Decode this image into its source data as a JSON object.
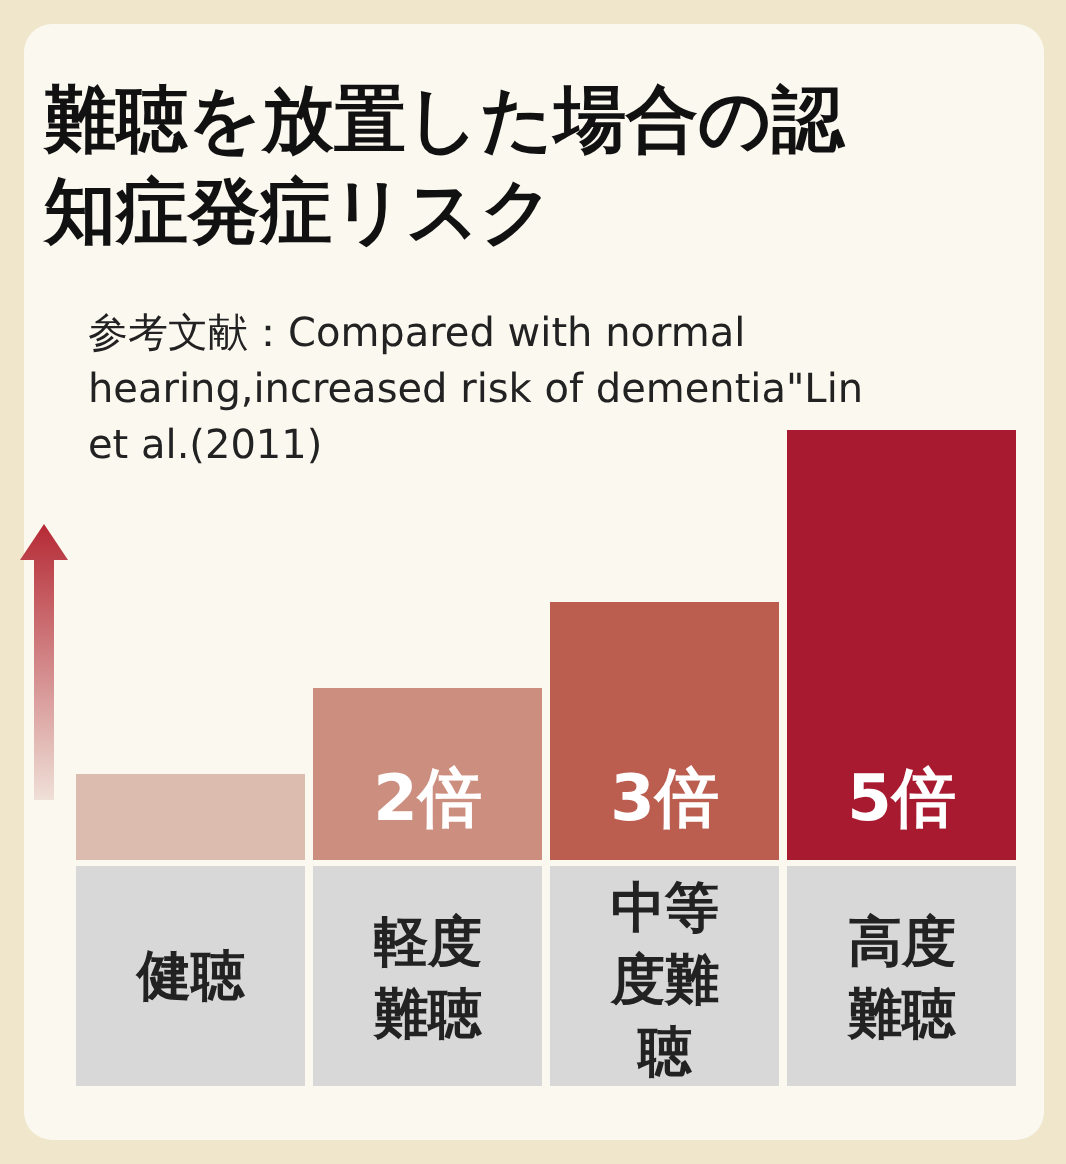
{
  "chart_data": {
    "type": "bar",
    "title": "難聴を放置した場合の認知症発症リスク",
    "subtitle": "参考文献：Compared with normal hearing,increased risk of dementia\"Lin et al.(2011)",
    "categories": [
      "健聴",
      "軽度難聴",
      "中等度難聴",
      "高度難聴"
    ],
    "values": [
      1,
      2,
      3,
      5
    ],
    "colors": [
      "#dcbcae",
      "#cc8e7e",
      "#bb5e50",
      "#a81a30"
    ],
    "value_labels": [
      null,
      "2倍",
      "3倍",
      "5倍"
    ]
  }
}
